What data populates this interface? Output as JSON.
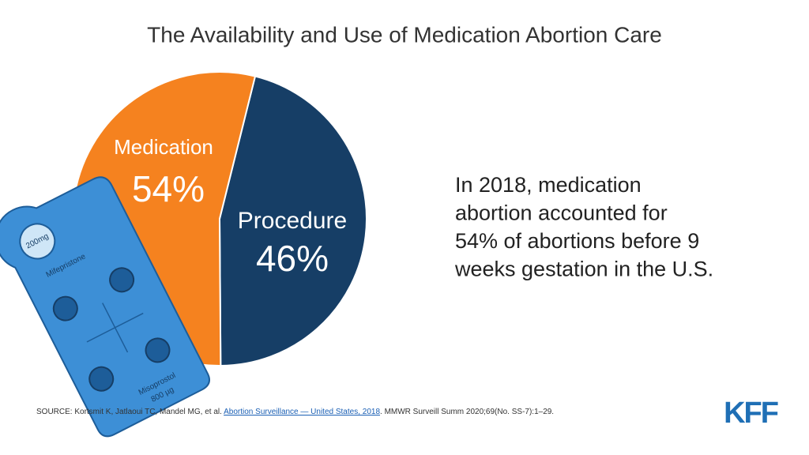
{
  "chart_data": {
    "type": "pie",
    "title": "The Availability and Use of Medication Abortion Care",
    "categories": [
      "Medication",
      "Procedure"
    ],
    "values": [
      54,
      46
    ],
    "value_labels": [
      "54%",
      "46%"
    ],
    "colors": [
      "#f5821f",
      "#163e66"
    ],
    "annotation": [
      "In 2018, medication",
      "abortion accounted for",
      "54% of abortions before 9",
      "weeks gestation in the U.S."
    ]
  },
  "illustration": {
    "labels": [
      "200mg",
      "Mifepristone",
      "Misoprostol",
      "800 µg"
    ]
  },
  "source": {
    "text": "SOURCE: Kortsmit K, Jatlaoui TC, Mandel MG, et al. ",
    "link": "Abortion Surveillance — United States, 2018",
    "rest": ". MMWR Surveill Summ 2020;69(No. SS-7):1–29."
  },
  "logo": "KFF"
}
